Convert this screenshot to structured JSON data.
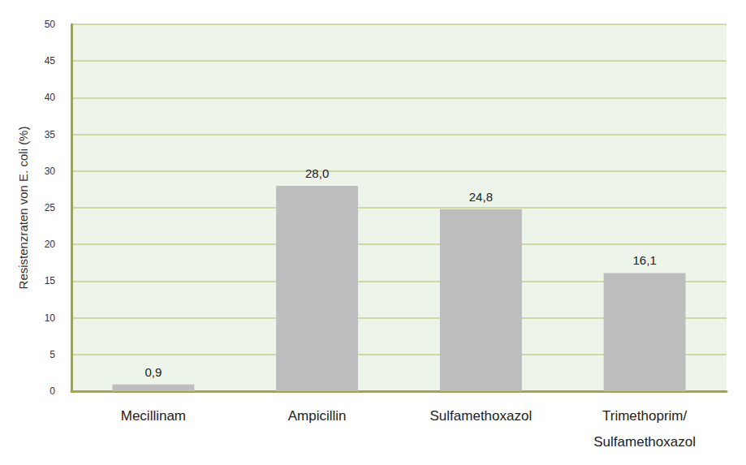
{
  "chart_data": {
    "type": "bar",
    "y_label": "Resistenzraten von E. coli (%)",
    "categories": [
      "Mecillinam",
      "Ampicillin",
      "Sulfamethoxazol",
      "Trimethoprim/\nSulfamethoxazol"
    ],
    "values": [
      0.9,
      28.0,
      24.8,
      16.1
    ],
    "value_labels": [
      "0,9",
      "28,0",
      "24,8",
      "16,1"
    ],
    "color": "#bdbdbd",
    "ylim": [
      0,
      50
    ],
    "yticks": [
      0,
      5,
      10,
      15,
      20,
      25,
      30,
      35,
      40,
      45,
      50
    ],
    "grid": true,
    "data_labels": true
  }
}
